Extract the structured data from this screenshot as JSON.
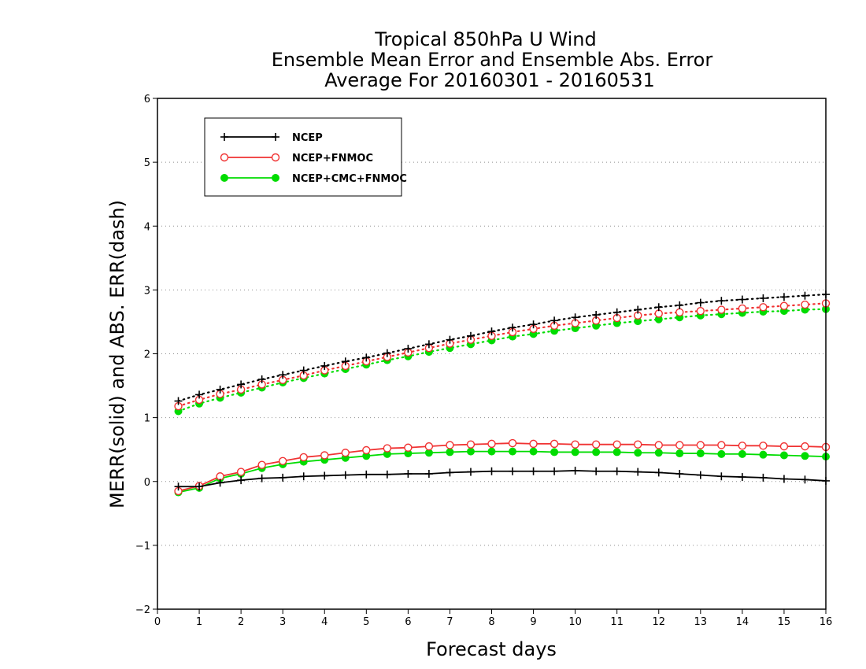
{
  "chart_data": {
    "type": "line",
    "title": [
      "Tropical 850hPa U Wind",
      "Ensemble Mean Error and Ensemble Abs. Error",
      "Average For 20160301 - 20160531"
    ],
    "xlabel": "Forecast days",
    "ylabel": "MERR(solid) and ABS. ERR(dash)",
    "xlim": [
      0,
      16
    ],
    "ylim": [
      -2,
      6
    ],
    "x_ticks": [
      "0",
      "1",
      "2",
      "3",
      "4",
      "5",
      "6",
      "7",
      "8",
      "9",
      "10",
      "11",
      "12",
      "13",
      "14",
      "15",
      "16"
    ],
    "y_ticks": [
      "−2",
      "−1",
      "0",
      "1",
      "2",
      "3",
      "4",
      "5",
      "6"
    ],
    "grid": "horizontal dotted",
    "legend_position": "top-left",
    "x": [
      0.5,
      1,
      1.5,
      2,
      2.5,
      3,
      3.5,
      4,
      4.5,
      5,
      5.5,
      6,
      6.5,
      7,
      7.5,
      8,
      8.5,
      9,
      9.5,
      10,
      10.5,
      11,
      11.5,
      12,
      12.5,
      13,
      13.5,
      14,
      14.5,
      15,
      15.5,
      16
    ],
    "series": [
      {
        "name": "NCEP",
        "color": "#000000",
        "marker": "plus",
        "merr": [
          -0.08,
          -0.08,
          -0.02,
          0.02,
          0.05,
          0.06,
          0.08,
          0.09,
          0.1,
          0.11,
          0.11,
          0.12,
          0.12,
          0.14,
          0.15,
          0.16,
          0.16,
          0.16,
          0.16,
          0.17,
          0.16,
          0.16,
          0.15,
          0.14,
          0.12,
          0.1,
          0.08,
          0.07,
          0.06,
          0.04,
          0.03,
          0.01
        ],
        "abs_err": [
          1.26,
          1.36,
          1.44,
          1.52,
          1.6,
          1.67,
          1.74,
          1.81,
          1.88,
          1.94,
          2.01,
          2.08,
          2.15,
          2.22,
          2.28,
          2.35,
          2.41,
          2.46,
          2.52,
          2.57,
          2.61,
          2.65,
          2.69,
          2.73,
          2.76,
          2.8,
          2.83,
          2.85,
          2.87,
          2.89,
          2.91,
          2.93
        ]
      },
      {
        "name": "NCEP+FNMOC",
        "color": "#f03232",
        "marker": "open-circle",
        "merr": [
          -0.15,
          -0.07,
          0.08,
          0.15,
          0.26,
          0.32,
          0.38,
          0.41,
          0.45,
          0.49,
          0.52,
          0.53,
          0.55,
          0.57,
          0.58,
          0.59,
          0.6,
          0.59,
          0.59,
          0.58,
          0.58,
          0.58,
          0.58,
          0.57,
          0.57,
          0.57,
          0.57,
          0.56,
          0.56,
          0.55,
          0.55,
          0.54
        ],
        "abs_err": [
          1.18,
          1.28,
          1.37,
          1.44,
          1.52,
          1.59,
          1.66,
          1.74,
          1.81,
          1.88,
          1.95,
          2.02,
          2.09,
          2.16,
          2.22,
          2.28,
          2.34,
          2.39,
          2.44,
          2.48,
          2.52,
          2.56,
          2.6,
          2.63,
          2.65,
          2.67,
          2.69,
          2.71,
          2.73,
          2.75,
          2.77,
          2.79
        ]
      },
      {
        "name": "NCEP+CMC+FNMOC",
        "color": "#00dc00",
        "marker": "filled-circle",
        "merr": [
          -0.17,
          -0.1,
          0.05,
          0.12,
          0.21,
          0.27,
          0.31,
          0.34,
          0.37,
          0.4,
          0.43,
          0.44,
          0.45,
          0.46,
          0.47,
          0.47,
          0.47,
          0.47,
          0.46,
          0.46,
          0.46,
          0.46,
          0.45,
          0.45,
          0.44,
          0.44,
          0.43,
          0.43,
          0.42,
          0.41,
          0.4,
          0.39
        ],
        "abs_err": [
          1.1,
          1.22,
          1.31,
          1.39,
          1.47,
          1.55,
          1.62,
          1.69,
          1.76,
          1.83,
          1.9,
          1.96,
          2.03,
          2.09,
          2.15,
          2.21,
          2.27,
          2.31,
          2.36,
          2.4,
          2.44,
          2.48,
          2.51,
          2.54,
          2.57,
          2.6,
          2.62,
          2.64,
          2.66,
          2.67,
          2.69,
          2.7
        ]
      }
    ]
  }
}
